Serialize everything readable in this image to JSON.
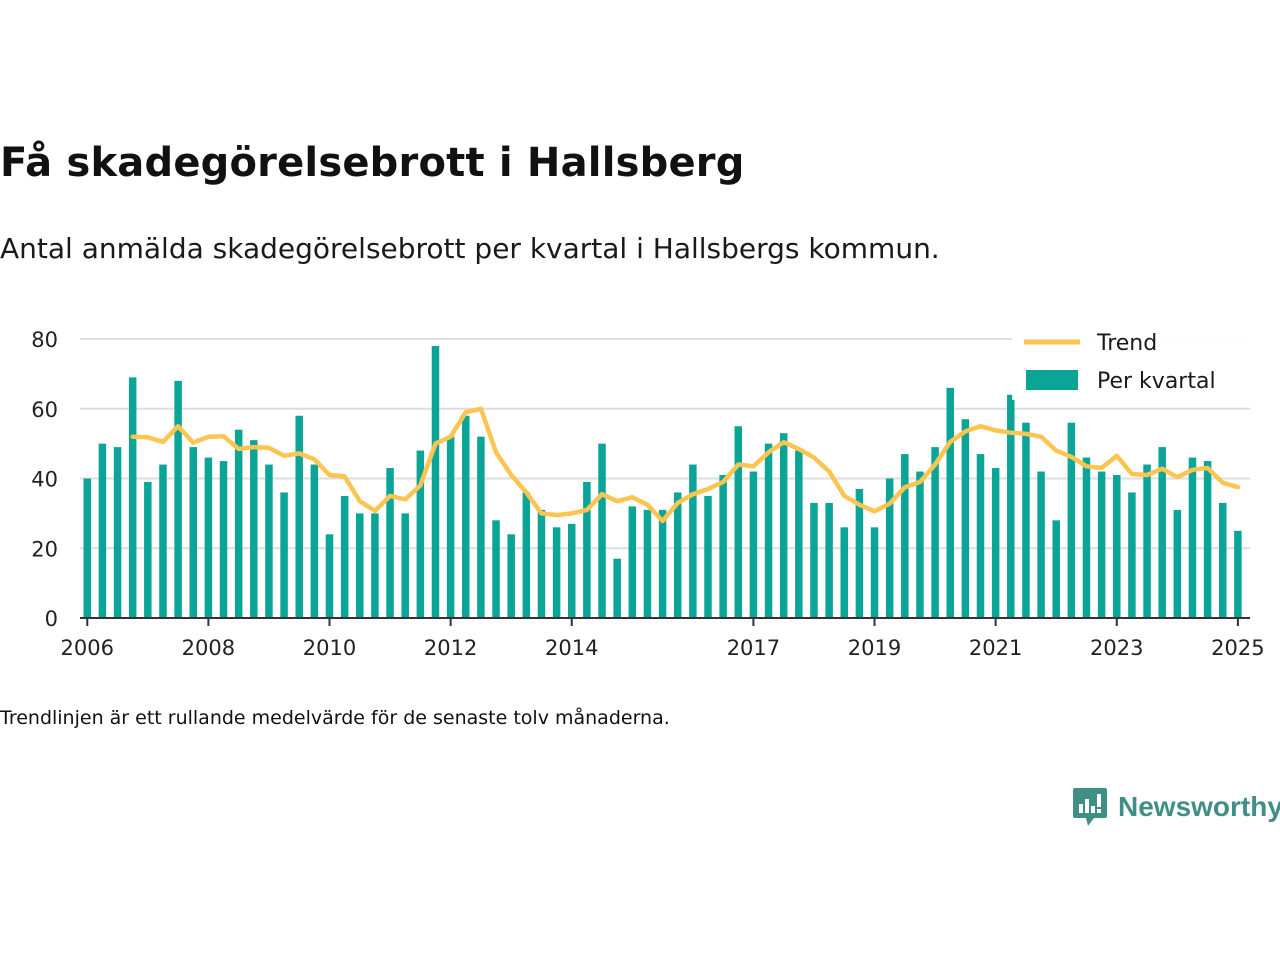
{
  "title": "Få skadegörelsebrott i Hallsberg",
  "subtitle": "Antal anmälda skadegörelsebrott per kvartal i Hallsbergs kommun.",
  "footnote": "Trendlinjen är ett rullande medelvärde för de senaste tolv månaderna.",
  "brand": "Newsworthy",
  "colors": {
    "bar": "#0aa596",
    "trend": "#fcc450",
    "grid": "#dddddd",
    "axis": "#333333",
    "brand": "#3f8f87"
  },
  "chart_data": {
    "type": "bar",
    "legend": {
      "position": "top-right",
      "items": [
        {
          "label": "Trend",
          "type": "line"
        },
        {
          "label": "Per kvartal",
          "type": "bar"
        }
      ]
    },
    "ylim": [
      0,
      80
    ],
    "yticks": [
      0,
      20,
      40,
      60,
      80
    ],
    "xlim": [
      2005.88,
      2025.2
    ],
    "xticks": [
      2006,
      2008,
      2010,
      2012,
      2014,
      2017,
      2019,
      2021,
      2023,
      2025
    ],
    "grid": true,
    "series": [
      {
        "name": "Per kvartal",
        "type": "bar",
        "x": [
          2006,
          2006.25,
          2006.5,
          2006.75,
          2007,
          2007.25,
          2007.5,
          2007.75,
          2008,
          2008.25,
          2008.5,
          2008.75,
          2009,
          2009.25,
          2009.5,
          2009.75,
          2010,
          2010.25,
          2010.5,
          2010.75,
          2011,
          2011.25,
          2011.5,
          2011.75,
          2012,
          2012.25,
          2012.5,
          2012.75,
          2013,
          2013.25,
          2013.5,
          2013.75,
          2014,
          2014.25,
          2014.5,
          2014.75,
          2015,
          2015.25,
          2015.5,
          2015.75,
          2016,
          2016.25,
          2016.5,
          2016.75,
          2017,
          2017.25,
          2017.5,
          2017.75,
          2018,
          2018.25,
          2018.5,
          2018.75,
          2019,
          2019.25,
          2019.5,
          2019.75,
          2020,
          2020.25,
          2020.5,
          2020.75,
          2021,
          2021.25,
          2021.5,
          2021.75,
          2022,
          2022.25,
          2022.5,
          2022.75,
          2023,
          2023.25,
          2023.5,
          2023.75,
          2024,
          2024.25,
          2024.5,
          2024.75,
          2025
        ],
        "values": [
          40,
          50,
          49,
          69,
          39,
          44,
          68,
          49,
          46,
          45,
          54,
          51,
          44,
          36,
          58,
          44,
          24,
          35,
          30,
          30,
          43,
          30,
          48,
          78,
          52,
          58,
          52,
          28,
          24,
          36,
          31,
          26,
          27,
          39,
          50,
          17,
          32,
          31,
          31,
          36,
          44,
          35,
          41,
          55,
          42,
          50,
          53,
          48,
          33,
          33,
          26,
          37,
          26,
          40,
          47,
          42,
          49,
          66,
          57,
          47,
          43,
          64,
          56,
          42,
          28,
          56,
          46,
          42,
          41,
          36,
          44,
          49,
          31,
          46,
          45,
          33,
          25
        ]
      },
      {
        "name": "Trend",
        "type": "line",
        "x": [
          2006.75,
          2007,
          2007.25,
          2007.5,
          2007.75,
          2008,
          2008.25,
          2008.5,
          2008.75,
          2009,
          2009.25,
          2009.5,
          2009.75,
          2010,
          2010.25,
          2010.5,
          2010.75,
          2011,
          2011.25,
          2011.5,
          2011.75,
          2012,
          2012.25,
          2012.5,
          2012.75,
          2013,
          2013.25,
          2013.5,
          2013.75,
          2014,
          2014.25,
          2014.5,
          2014.75,
          2015,
          2015.25,
          2015.5,
          2015.75,
          2016,
          2016.25,
          2016.5,
          2016.75,
          2017,
          2017.25,
          2017.5,
          2017.75,
          2018,
          2018.25,
          2018.5,
          2018.75,
          2019,
          2019.25,
          2019.5,
          2019.75,
          2020,
          2020.25,
          2020.5,
          2020.75,
          2021,
          2021.25,
          2021.5,
          2021.75,
          2022,
          2022.25,
          2022.5,
          2022.75,
          2023,
          2023.25,
          2023.5,
          2023.75,
          2024,
          2024.25,
          2024.5,
          2024.75,
          2025
        ],
        "values": [
          52,
          51.8,
          50.5,
          55,
          50.3,
          52,
          52.1,
          48.5,
          49,
          48.8,
          46.5,
          47.2,
          45.5,
          41,
          40.6,
          33.5,
          30.7,
          35,
          34,
          38,
          50,
          52,
          59,
          60,
          47.5,
          41,
          36,
          30,
          29.5,
          30,
          31,
          35.5,
          33.5,
          34.6,
          32.5,
          27.8,
          33,
          35.5,
          37,
          39,
          44,
          43.5,
          47.5,
          50.4,
          48.5,
          46,
          42,
          35,
          32.5,
          30.6,
          32.8,
          37.5,
          39,
          44,
          50.5,
          53.5,
          55,
          53.8,
          53.1,
          52.8,
          52,
          48,
          46.2,
          43.5,
          43,
          46.5,
          41.3,
          41,
          42.8,
          40.4,
          42.5,
          43,
          38.8,
          37.5
        ]
      }
    ]
  }
}
